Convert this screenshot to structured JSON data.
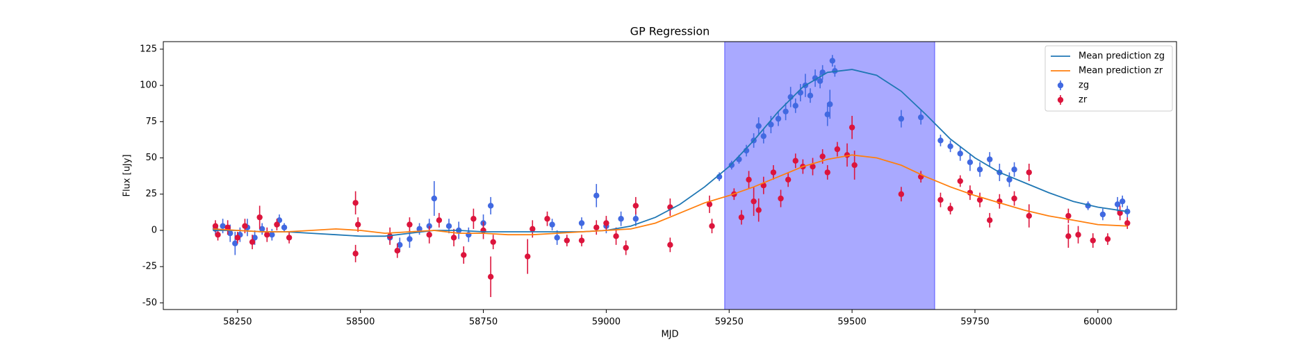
{
  "chart_data": {
    "type": "scatter",
    "title": "GP Regression",
    "xlabel": "MJD",
    "ylabel": "Flux [uJy]",
    "xlim": [
      58099,
      60160
    ],
    "ylim": [
      -54.6,
      130.2
    ],
    "xticks": [
      58250,
      58500,
      58750,
      59000,
      59250,
      59500,
      59750,
      60000
    ],
    "yticks": [
      -50,
      -25,
      0,
      25,
      50,
      75,
      100,
      125
    ],
    "legend": "upper right",
    "grid": false,
    "span": [
      59241,
      59668
    ],
    "span_color": "#a9a9ff",
    "series": [
      {
        "name": "Mean prediction zg",
        "style": "line",
        "color": "#1f77b4",
        "x": [
          58200,
          58250,
          58300,
          58350,
          58400,
          58450,
          58500,
          58550,
          58600,
          58650,
          58700,
          58750,
          58800,
          58850,
          58900,
          58950,
          59000,
          59050,
          59100,
          59150,
          59200,
          59250,
          59300,
          59350,
          59400,
          59450,
          59500,
          59550,
          59600,
          59650,
          59700,
          59750,
          59800,
          59850,
          59900,
          59950,
          60000,
          60060
        ],
        "values": [
          0,
          0,
          -1,
          -1,
          -2,
          -3,
          -4,
          -4,
          -2,
          0,
          0,
          -1,
          -1,
          -1,
          -1,
          -1,
          0,
          3,
          9,
          18,
          30,
          44,
          62,
          82,
          99,
          109,
          111,
          107,
          96,
          80,
          63,
          50,
          40,
          33,
          26,
          20,
          16,
          13
        ]
      },
      {
        "name": "Mean prediction zr",
        "style": "line",
        "color": "#ff7f0e",
        "x": [
          58200,
          58250,
          58300,
          58350,
          58400,
          58450,
          58500,
          58550,
          58600,
          58650,
          58700,
          58750,
          58800,
          58850,
          58900,
          58950,
          59000,
          59050,
          59100,
          59150,
          59200,
          59250,
          59300,
          59350,
          59400,
          59450,
          59500,
          59550,
          59600,
          59650,
          59700,
          59750,
          59800,
          59850,
          59900,
          59950,
          60000,
          60060
        ],
        "values": [
          1,
          0,
          -1,
          -1,
          0,
          1,
          0,
          -2,
          -1,
          0,
          -2,
          -2,
          -3,
          -3,
          -2,
          -1,
          0,
          1,
          5,
          12,
          19,
          24,
          30,
          37,
          44,
          49,
          52,
          50,
          45,
          37,
          30,
          24,
          19,
          14,
          10,
          7,
          4,
          3
        ]
      },
      {
        "name": "zg",
        "style": "errorbar",
        "color": "#4169e1",
        "x": [
          58205,
          58220,
          58235,
          58245,
          58255,
          58270,
          58285,
          58300,
          58320,
          58335,
          58345,
          58560,
          58580,
          58600,
          58620,
          58640,
          58650,
          58680,
          58700,
          58720,
          58750,
          58765,
          58890,
          58900,
          58950,
          58980,
          59000,
          59030,
          59060,
          59230,
          59255,
          59270,
          59285,
          59300,
          59310,
          59320,
          59335,
          59350,
          59365,
          59375,
          59385,
          59395,
          59405,
          59415,
          59425,
          59435,
          59440,
          59450,
          59455,
          59460,
          59465,
          59600,
          59640,
          59680,
          59700,
          59720,
          59740,
          59760,
          59780,
          59800,
          59820,
          59830,
          59980,
          60010,
          60040,
          60050,
          60060
        ],
        "values": [
          1,
          3,
          -2,
          -9,
          -3,
          2,
          -5,
          1,
          -3,
          7,
          2,
          -5,
          -10,
          -6,
          1,
          3,
          22,
          3,
          0,
          -3,
          5,
          17,
          4,
          -5,
          5,
          24,
          3,
          8,
          8,
          37,
          45,
          49,
          55,
          62,
          72,
          65,
          73,
          77,
          82,
          92,
          86,
          95,
          100,
          93,
          105,
          103,
          109,
          80,
          87,
          117,
          110,
          77,
          78,
          62,
          58,
          53,
          47,
          42,
          49,
          40,
          35,
          42,
          17,
          11,
          18,
          20,
          13
        ],
        "errors": [
          4,
          5,
          6,
          8,
          5,
          6,
          5,
          4,
          4,
          4,
          3,
          4,
          5,
          6,
          4,
          5,
          12,
          5,
          6,
          5,
          6,
          6,
          4,
          5,
          4,
          8,
          5,
          5,
          5,
          3,
          3,
          3,
          4,
          5,
          6,
          5,
          6,
          5,
          6,
          7,
          5,
          6,
          8,
          5,
          6,
          5,
          5,
          8,
          10,
          4,
          4,
          6,
          5,
          4,
          4,
          5,
          6,
          5,
          5,
          6,
          5,
          5,
          3,
          4,
          5,
          4,
          4
        ]
      },
      {
        "name": "zr",
        "style": "errorbar",
        "color": "#dc143c",
        "x": [
          58205,
          58210,
          58230,
          58250,
          58265,
          58280,
          58295,
          58310,
          58330,
          58355,
          58490,
          58490,
          58495,
          58560,
          58575,
          58600,
          58640,
          58660,
          58690,
          58710,
          58730,
          58750,
          58765,
          58770,
          58840,
          58850,
          58880,
          58920,
          58950,
          58980,
          59000,
          59020,
          59040,
          59060,
          59130,
          59130,
          59210,
          59215,
          59260,
          59275,
          59290,
          59300,
          59310,
          59320,
          59340,
          59355,
          59370,
          59385,
          59400,
          59420,
          59440,
          59450,
          59470,
          59490,
          59500,
          59505,
          59600,
          59640,
          59680,
          59700,
          59720,
          59740,
          59760,
          59780,
          59800,
          59830,
          59860,
          59860,
          59940,
          59940,
          59960,
          59990,
          60020,
          60045,
          60060
        ],
        "values": [
          3,
          -3,
          2,
          -5,
          3,
          -8,
          9,
          -3,
          4,
          -5,
          19,
          -16,
          4,
          -4,
          -14,
          4,
          -3,
          7,
          -5,
          -17,
          8,
          0,
          -32,
          -8,
          -18,
          1,
          8,
          -7,
          -7,
          2,
          5,
          -4,
          -12,
          17,
          16,
          -10,
          18,
          3,
          25,
          9,
          35,
          20,
          14,
          31,
          40,
          22,
          35,
          48,
          44,
          44,
          51,
          40,
          56,
          52,
          71,
          45,
          25,
          37,
          21,
          15,
          34,
          26,
          21,
          7,
          20,
          22,
          40,
          10,
          -4,
          10,
          -3,
          -7,
          -6,
          12,
          5
        ],
        "errors": [
          4,
          4,
          5,
          4,
          5,
          5,
          8,
          5,
          4,
          4,
          8,
          6,
          5,
          6,
          5,
          5,
          6,
          5,
          6,
          6,
          7,
          6,
          14,
          5,
          12,
          6,
          5,
          4,
          4,
          5,
          5,
          6,
          5,
          6,
          6,
          5,
          6,
          5,
          4,
          5,
          6,
          10,
          8,
          6,
          5,
          6,
          5,
          5,
          5,
          6,
          5,
          5,
          5,
          8,
          8,
          10,
          5,
          4,
          5,
          4,
          4,
          5,
          5,
          5,
          5,
          5,
          6,
          8,
          8,
          5,
          6,
          5,
          4,
          5,
          4
        ]
      }
    ]
  }
}
